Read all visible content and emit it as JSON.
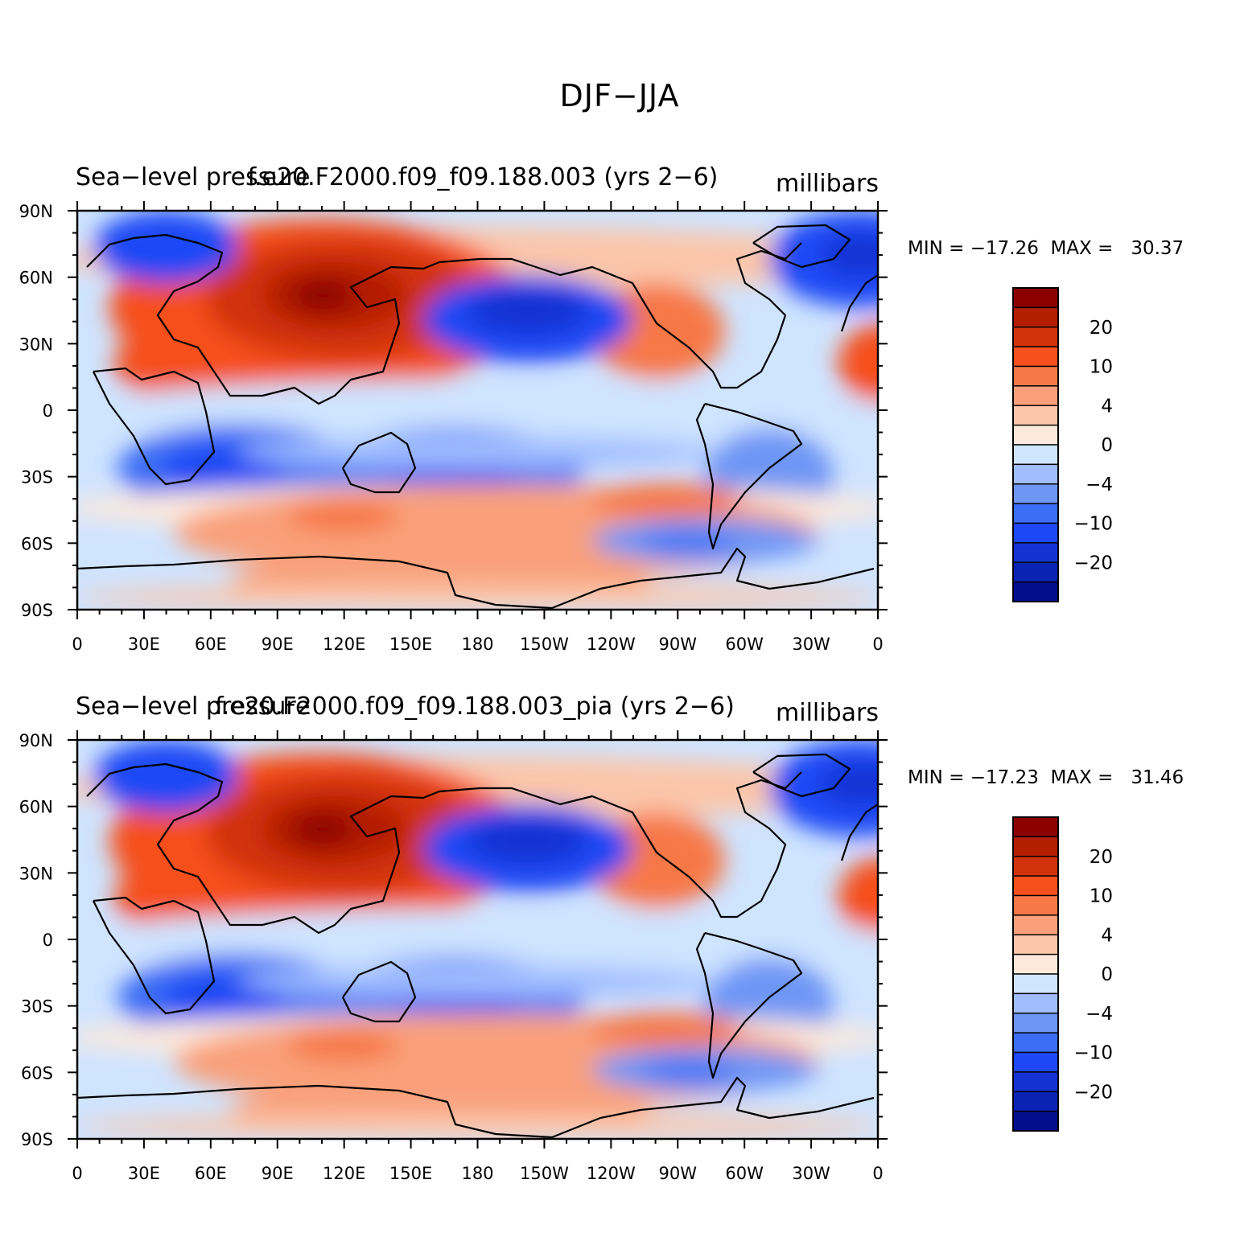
{
  "figure": {
    "title": "DJF−JJA"
  },
  "palette": {
    "levels": [
      "−20",
      "−10",
      "−4",
      "0",
      "4",
      "10",
      "20"
    ],
    "colors": [
      "#000e8c",
      "#0a23b4",
      "#1432d2",
      "#1e48f5",
      "#3c6ef5",
      "#6e96f5",
      "#a0beff",
      "#cfe4ff",
      "#fde9dc",
      "#fbc6aa",
      "#f9a07a",
      "#f77847",
      "#f5501e",
      "#d2320a",
      "#b41e00",
      "#8c0000"
    ],
    "land_outline": "#000000"
  },
  "axes": {
    "lon_labels": [
      "0",
      "30E",
      "60E",
      "90E",
      "120E",
      "150E",
      "180",
      "150W",
      "120W",
      "90W",
      "60W",
      "30W",
      "0"
    ],
    "lat_labels": [
      "90N",
      "60N",
      "30N",
      "0",
      "30S",
      "60S",
      "90S"
    ]
  },
  "panels": [
    {
      "left_title": "Sea−level pressure",
      "center_title": "f.e20.F2000.f09_f09.188.003 (yrs 2−6)",
      "units": "millibars",
      "stats": "MIN = −17.26  MAX =   30.37"
    },
    {
      "left_title": "Sea−level pressure",
      "center_title": "f.e20.F2000.f09_f09.188.003_pia (yrs 2−6)",
      "units": "millibars",
      "stats": "MIN = −17.23  MAX =   31.46"
    }
  ]
}
